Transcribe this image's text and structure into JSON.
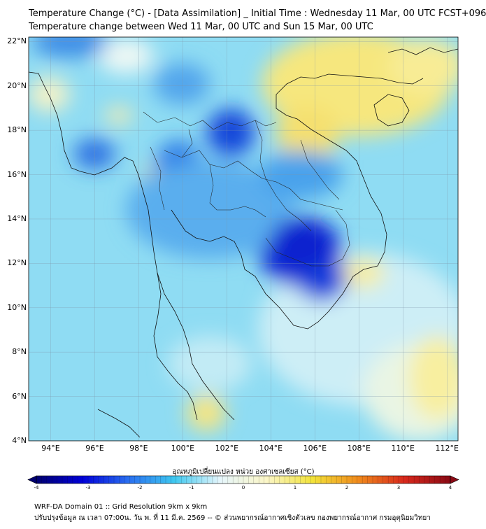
{
  "title_line1": "Temperature Change (°C) - [Data Assimilation] _ Initial Time : Wednesday 11 Mar, 00 UTC FCST+096",
  "title_line2": "Temperature change between Wed 11 Mar, 00 UTC and Sun 15 Mar, 00 UTC",
  "lat_labels": [
    "22°N",
    "20°N",
    "18°N",
    "16°N",
    "14°N",
    "12°N",
    "10°N",
    "8°N",
    "6°N",
    "4°N"
  ],
  "lon_labels": [
    "94°E",
    "96°E",
    "98°E",
    "100°E",
    "102°E",
    "104°E",
    "106°E",
    "108°E",
    "110°E",
    "112°E"
  ],
  "colorbar": {
    "label": "อุณหภูมิเปลี่ยนแปลง หน่วย องศาเซลเซียส (°C)",
    "ticks": [
      "-4",
      "-3",
      "-2",
      "-1",
      "0",
      "1",
      "2",
      "3",
      "4"
    ],
    "min": -4,
    "max": 4,
    "colors": [
      "#000070",
      "#0000d8",
      "#2a6ff0",
      "#3ec8f0",
      "#e6f6fb",
      "#fbf6c8",
      "#f2e33a",
      "#f08a1c",
      "#d8281c",
      "#8a0a14"
    ]
  },
  "footer_line1": "WRF-DA Domain 01 :: Grid Resolution 9km x 9km",
  "footer_line2": "ปรับปรุงข้อมูล ณ เวลา 07:00น. วัน พ. ที่ 11 มี.ค. 2569 -- © ส่วนพยากรณ์อากาศเชิงตัวเลข กองพยากรณ์อากาศ กรมอุตุนิยมวิทยา",
  "map_extent": {
    "lon_min": 93,
    "lon_max": 112.5,
    "lat_min": 4,
    "lat_max": 22.2
  }
}
